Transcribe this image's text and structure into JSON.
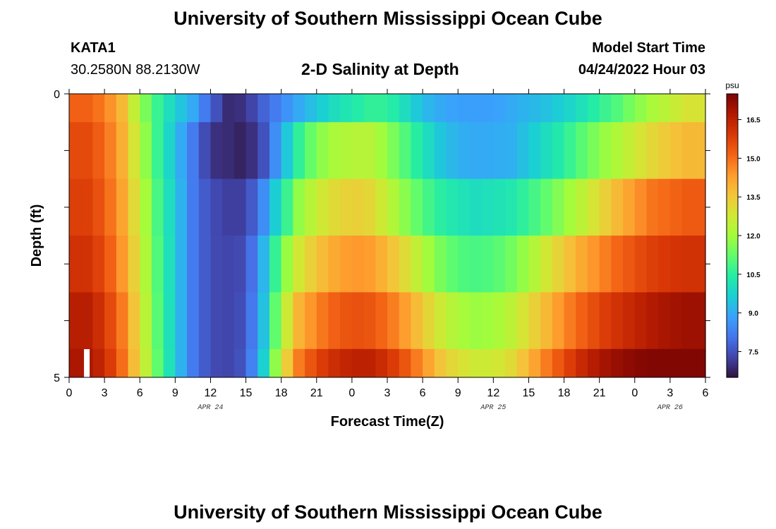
{
  "header": {
    "title": "University of Southern Mississippi Ocean Cube",
    "station_id": "KATA1",
    "station_coords": "30.2580N  88.2130W",
    "plot_title": "2-D Salinity at Depth",
    "model_start_label": "Model Start Time",
    "model_start_value": "04/24/2022 Hour 03"
  },
  "footer": {
    "title": "University of Southern Mississippi Ocean Cube"
  },
  "chart_data": {
    "type": "heatmap",
    "title": "2-D Salinity at Depth",
    "xlabel": "Forecast Time(Z)",
    "ylabel": "Depth (ft)",
    "x_tick_labels": [
      "0",
      "3",
      "6",
      "9",
      "12",
      "15",
      "18",
      "21",
      "0",
      "3",
      "6",
      "9",
      "12",
      "15",
      "18",
      "21",
      "0",
      "3",
      "6"
    ],
    "x_tick_hours": [
      0,
      3,
      6,
      9,
      12,
      15,
      18,
      21,
      24,
      27,
      30,
      33,
      36,
      39,
      42,
      45,
      48,
      51,
      54
    ],
    "date_labels": [
      {
        "label": "APR 24",
        "hour": 12
      },
      {
        "label": "APR 25",
        "hour": 36
      },
      {
        "label": "APR 26",
        "hour": 51
      }
    ],
    "xlim": [
      0,
      54
    ],
    "y_tick_labels": [
      "0",
      "5"
    ],
    "ylim": [
      0,
      5
    ],
    "y_reversed": true,
    "colorbar": {
      "unit": "psu",
      "tick_labels": [
        "16.5",
        "15.0",
        "13.5",
        "12.0",
        "10.5",
        "9.0",
        "7.5"
      ],
      "tick_values": [
        16.5,
        15.0,
        13.5,
        12.0,
        10.5,
        9.0,
        7.5
      ],
      "range": [
        6.5,
        17.5
      ],
      "colormap": [
        "#30123b",
        "#4145ab",
        "#4675ed",
        "#39a2fc",
        "#1bcfd4",
        "#24eca6",
        "#61fc6c",
        "#a4fc3b",
        "#d1e834",
        "#f3c63a",
        "#fe9b2d",
        "#f36315",
        "#d93806",
        "#b11901",
        "#7a0403"
      ]
    },
    "x": [
      0,
      1.5,
      3,
      4.5,
      6,
      7.5,
      9,
      10.5,
      12,
      13.5,
      15,
      16.5,
      18,
      19.5,
      21,
      22.5,
      24,
      25.5,
      27,
      28.5,
      30,
      31.5,
      33,
      34.5,
      36,
      37.5,
      39,
      40.5,
      42,
      43.5,
      45,
      46.5,
      48,
      49.5,
      51,
      52.5,
      54
    ],
    "depth_layers": [
      {
        "top": 0,
        "bottom": 0.5,
        "values": [
          15.2,
          15.2,
          14.8,
          13.8,
          11.9,
          10.7,
          9.7,
          9.0,
          7.8,
          6.9,
          7.0,
          7.8,
          8.4,
          9.0,
          9.5,
          10.0,
          10.3,
          10.6,
          10.6,
          10.0,
          9.3,
          9.0,
          8.8,
          8.8,
          8.8,
          9.0,
          9.2,
          9.4,
          9.7,
          10.1,
          10.6,
          11.0,
          11.6,
          12.1,
          12.5,
          12.9,
          12.9
        ]
      },
      {
        "top": 0.5,
        "bottom": 1.5,
        "values": [
          15.6,
          15.6,
          15.1,
          14.0,
          12.3,
          10.7,
          9.4,
          8.2,
          7.0,
          6.9,
          6.7,
          7.5,
          9.0,
          10.6,
          11.6,
          12.1,
          12.3,
          12.3,
          11.8,
          11.0,
          10.2,
          9.5,
          9.1,
          9.0,
          9.0,
          9.1,
          9.5,
          10.0,
          10.5,
          11.1,
          11.7,
          12.2,
          12.7,
          13.2,
          13.6,
          13.8,
          13.8
        ]
      },
      {
        "top": 1.5,
        "bottom": 2.5,
        "values": [
          15.8,
          15.8,
          15.3,
          14.2,
          12.6,
          10.9,
          9.6,
          8.2,
          7.4,
          7.2,
          7.2,
          8.5,
          10.2,
          11.8,
          12.6,
          13.1,
          13.4,
          13.2,
          12.5,
          11.7,
          11.0,
          10.5,
          10.2,
          10.0,
          10.1,
          10.3,
          10.7,
          11.2,
          11.8,
          12.4,
          13.1,
          13.8,
          14.4,
          14.9,
          15.1,
          15.3,
          15.3
        ]
      },
      {
        "top": 2.5,
        "bottom": 3.5,
        "values": [
          16.1,
          16.1,
          15.6,
          14.4,
          12.8,
          11.0,
          9.6,
          8.2,
          7.4,
          7.3,
          7.4,
          9.2,
          11.4,
          12.8,
          13.6,
          14.1,
          14.4,
          14.3,
          13.8,
          13.1,
          12.2,
          11.5,
          11.0,
          10.9,
          11.0,
          11.4,
          12.0,
          12.8,
          13.5,
          14.1,
          14.6,
          15.1,
          15.5,
          15.8,
          16.0,
          16.1,
          16.1
        ]
      },
      {
        "top": 3.5,
        "bottom": 4.5,
        "values": [
          16.6,
          16.6,
          16.0,
          14.8,
          13.0,
          11.1,
          9.6,
          8.2,
          7.4,
          7.3,
          7.5,
          9.4,
          12.1,
          13.9,
          14.7,
          15.2,
          15.5,
          15.4,
          15.0,
          14.3,
          13.5,
          12.7,
          12.1,
          11.9,
          12.0,
          12.4,
          13.1,
          13.8,
          14.6,
          15.2,
          15.7,
          16.1,
          16.4,
          16.7,
          16.9,
          17.0,
          17.0
        ]
      },
      {
        "top": 4.5,
        "bottom": 5,
        "values": [
          16.8,
          16.8,
          16.3,
          15.0,
          13.1,
          11.2,
          9.6,
          8.2,
          7.4,
          7.3,
          7.6,
          9.7,
          12.8,
          14.8,
          15.7,
          16.2,
          16.5,
          16.5,
          16.1,
          15.4,
          14.5,
          13.6,
          13.0,
          12.7,
          12.7,
          13.1,
          13.9,
          14.8,
          15.6,
          16.3,
          16.8,
          17.1,
          17.3,
          17.4,
          17.4,
          17.4,
          17.4
        ]
      }
    ],
    "marker": {
      "hour": 1.5,
      "label": ""
    }
  }
}
